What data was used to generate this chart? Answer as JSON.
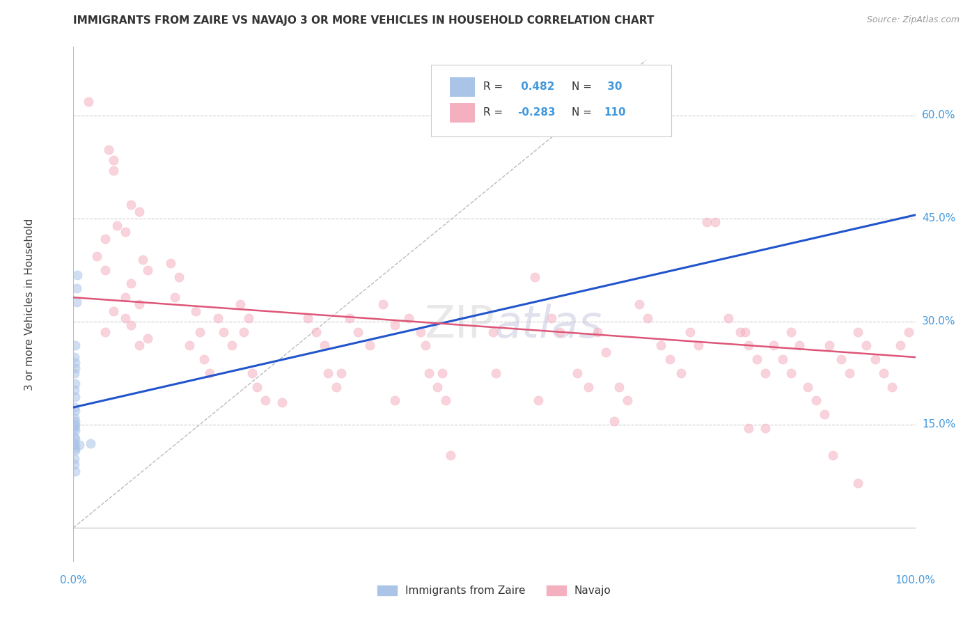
{
  "title": "IMMIGRANTS FROM ZAIRE VS NAVAJO 3 OR MORE VEHICLES IN HOUSEHOLD CORRELATION CHART",
  "source": "Source: ZipAtlas.com",
  "ylabel": "3 or more Vehicles in Household",
  "y_tick_values": [
    0.15,
    0.3,
    0.45,
    0.6
  ],
  "y_tick_labels": [
    "15.0%",
    "30.0%",
    "45.0%",
    "60.0%"
  ],
  "x_tick_labels": [
    "0.0%",
    "100.0%"
  ],
  "xlim": [
    0.0,
    1.0
  ],
  "ylim": [
    -0.05,
    0.7
  ],
  "legend_r1": "R =  0.482",
  "legend_n1": "N =  30",
  "legend_r2": "R = -0.283",
  "legend_n2": "N = 110",
  "bottom_legend": [
    {
      "label": "Immigrants from Zaire",
      "color": "#aac4e8"
    },
    {
      "label": "Navajo",
      "color": "#f5b0c0"
    }
  ],
  "blue_dots": [
    [
      0.001,
      0.225
    ],
    [
      0.002,
      0.24
    ],
    [
      0.002,
      0.265
    ],
    [
      0.001,
      0.2
    ],
    [
      0.002,
      0.19
    ],
    [
      0.002,
      0.21
    ],
    [
      0.001,
      0.175
    ],
    [
      0.002,
      0.17
    ],
    [
      0.001,
      0.16
    ],
    [
      0.002,
      0.15
    ],
    [
      0.001,
      0.145
    ],
    [
      0.002,
      0.155
    ],
    [
      0.001,
      0.148
    ],
    [
      0.002,
      0.142
    ],
    [
      0.002,
      0.13
    ],
    [
      0.001,
      0.12
    ],
    [
      0.002,
      0.112
    ],
    [
      0.001,
      0.132
    ],
    [
      0.001,
      0.122
    ],
    [
      0.002,
      0.115
    ],
    [
      0.004,
      0.348
    ],
    [
      0.005,
      0.368
    ],
    [
      0.004,
      0.328
    ],
    [
      0.001,
      0.248
    ],
    [
      0.002,
      0.232
    ],
    [
      0.001,
      0.1
    ],
    [
      0.001,
      0.092
    ],
    [
      0.002,
      0.082
    ],
    [
      0.007,
      0.12
    ],
    [
      0.02,
      0.122
    ]
  ],
  "pink_dots": [
    [
      0.018,
      0.62
    ],
    [
      0.042,
      0.55
    ],
    [
      0.048,
      0.52
    ],
    [
      0.068,
      0.47
    ],
    [
      0.078,
      0.46
    ],
    [
      0.052,
      0.44
    ],
    [
      0.062,
      0.43
    ],
    [
      0.082,
      0.39
    ],
    [
      0.088,
      0.375
    ],
    [
      0.068,
      0.355
    ],
    [
      0.062,
      0.335
    ],
    [
      0.038,
      0.42
    ],
    [
      0.028,
      0.395
    ],
    [
      0.038,
      0.375
    ],
    [
      0.078,
      0.325
    ],
    [
      0.048,
      0.315
    ],
    [
      0.062,
      0.305
    ],
    [
      0.068,
      0.295
    ],
    [
      0.038,
      0.285
    ],
    [
      0.088,
      0.275
    ],
    [
      0.078,
      0.265
    ],
    [
      0.115,
      0.385
    ],
    [
      0.125,
      0.365
    ],
    [
      0.12,
      0.335
    ],
    [
      0.145,
      0.315
    ],
    [
      0.15,
      0.285
    ],
    [
      0.138,
      0.265
    ],
    [
      0.155,
      0.245
    ],
    [
      0.162,
      0.225
    ],
    [
      0.172,
      0.305
    ],
    [
      0.178,
      0.285
    ],
    [
      0.188,
      0.265
    ],
    [
      0.198,
      0.325
    ],
    [
      0.208,
      0.305
    ],
    [
      0.202,
      0.285
    ],
    [
      0.212,
      0.225
    ],
    [
      0.218,
      0.205
    ],
    [
      0.228,
      0.185
    ],
    [
      0.248,
      0.182
    ],
    [
      0.278,
      0.305
    ],
    [
      0.288,
      0.285
    ],
    [
      0.298,
      0.265
    ],
    [
      0.302,
      0.225
    ],
    [
      0.312,
      0.205
    ],
    [
      0.318,
      0.225
    ],
    [
      0.328,
      0.305
    ],
    [
      0.338,
      0.285
    ],
    [
      0.352,
      0.265
    ],
    [
      0.368,
      0.325
    ],
    [
      0.382,
      0.295
    ],
    [
      0.398,
      0.305
    ],
    [
      0.412,
      0.285
    ],
    [
      0.418,
      0.265
    ],
    [
      0.422,
      0.225
    ],
    [
      0.432,
      0.205
    ],
    [
      0.438,
      0.225
    ],
    [
      0.442,
      0.185
    ],
    [
      0.448,
      0.105
    ],
    [
      0.498,
      0.285
    ],
    [
      0.502,
      0.225
    ],
    [
      0.548,
      0.365
    ],
    [
      0.568,
      0.305
    ],
    [
      0.578,
      0.285
    ],
    [
      0.598,
      0.225
    ],
    [
      0.612,
      0.205
    ],
    [
      0.622,
      0.285
    ],
    [
      0.632,
      0.255
    ],
    [
      0.648,
      0.205
    ],
    [
      0.658,
      0.185
    ],
    [
      0.672,
      0.325
    ],
    [
      0.682,
      0.305
    ],
    [
      0.698,
      0.265
    ],
    [
      0.708,
      0.245
    ],
    [
      0.722,
      0.225
    ],
    [
      0.732,
      0.285
    ],
    [
      0.742,
      0.265
    ],
    [
      0.752,
      0.445
    ],
    [
      0.762,
      0.445
    ],
    [
      0.778,
      0.305
    ],
    [
      0.792,
      0.285
    ],
    [
      0.798,
      0.285
    ],
    [
      0.802,
      0.265
    ],
    [
      0.812,
      0.245
    ],
    [
      0.822,
      0.225
    ],
    [
      0.832,
      0.265
    ],
    [
      0.842,
      0.245
    ],
    [
      0.852,
      0.225
    ],
    [
      0.852,
      0.285
    ],
    [
      0.862,
      0.265
    ],
    [
      0.872,
      0.205
    ],
    [
      0.882,
      0.185
    ],
    [
      0.892,
      0.165
    ],
    [
      0.898,
      0.265
    ],
    [
      0.912,
      0.245
    ],
    [
      0.922,
      0.225
    ],
    [
      0.932,
      0.285
    ],
    [
      0.942,
      0.265
    ],
    [
      0.952,
      0.245
    ],
    [
      0.962,
      0.225
    ],
    [
      0.972,
      0.205
    ],
    [
      0.982,
      0.265
    ],
    [
      0.992,
      0.285
    ],
    [
      0.902,
      0.105
    ],
    [
      0.932,
      0.065
    ],
    [
      0.048,
      0.535
    ],
    [
      0.382,
      0.185
    ],
    [
      0.552,
      0.185
    ],
    [
      0.642,
      0.155
    ],
    [
      0.802,
      0.145
    ],
    [
      0.822,
      0.145
    ]
  ],
  "blue_line": {
    "x0": 0.0,
    "y0": 0.175,
    "x1": 1.0,
    "y1": 0.455
  },
  "pink_line": {
    "x0": 0.0,
    "y0": 0.335,
    "x1": 1.0,
    "y1": 0.248
  },
  "diag_line": {
    "x0": 0.0,
    "y0": 0.0,
    "x1": 0.68,
    "y1": 0.68
  },
  "background_color": "#ffffff",
  "grid_color": "#cccccc",
  "title_color": "#333333",
  "blue_dot_color": "#aac4e8",
  "pink_dot_color": "#f5b0c0",
  "blue_line_color": "#2255cc",
  "pink_line_color": "#dd5577",
  "diag_line_color": "#bbbbbb",
  "tick_label_color": "#4499dd",
  "legend_text_color": "#4499dd",
  "dot_size": 90,
  "dot_alpha": 0.55,
  "figsize": [
    14.06,
    8.92
  ],
  "dpi": 100
}
